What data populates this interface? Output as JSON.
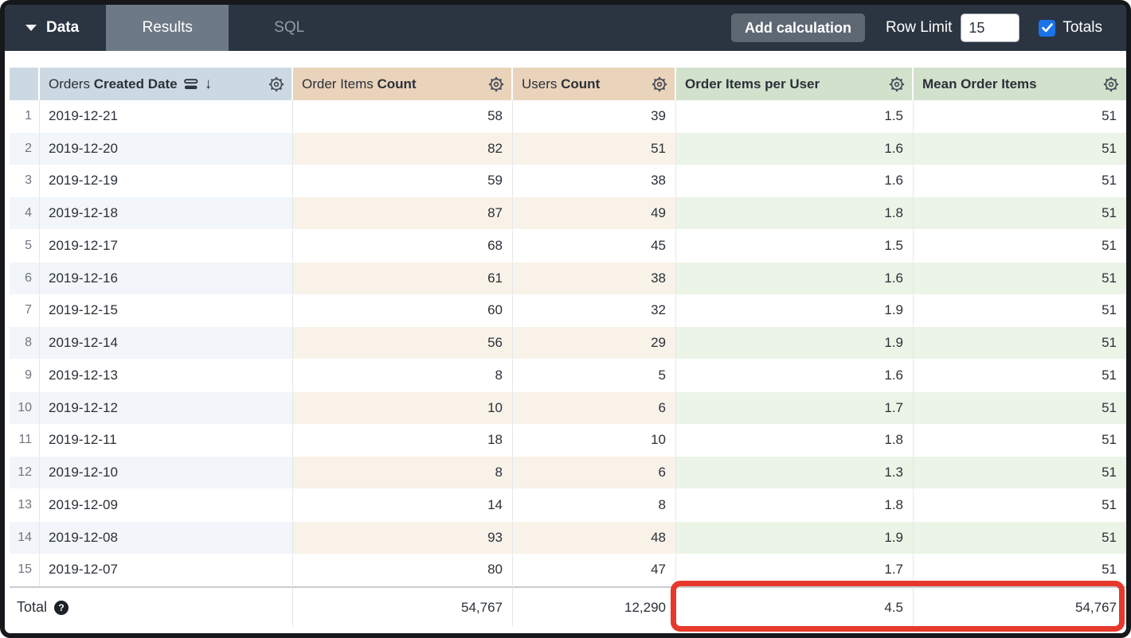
{
  "topbar": {
    "tabs": [
      {
        "label": "Data"
      },
      {
        "label": "Results"
      },
      {
        "label": "SQL"
      }
    ],
    "add_calculation_label": "Add calculation",
    "row_limit_label": "Row Limit",
    "row_limit_value": "15",
    "totals_label": "Totals",
    "totals_checked": true
  },
  "table": {
    "columns": [
      {
        "prefix": "Orders",
        "title": "Created Date",
        "type": "dimension",
        "sorted_desc": true
      },
      {
        "prefix": "Order Items",
        "title": "Count",
        "type": "measure"
      },
      {
        "prefix": "Users",
        "title": "Count",
        "type": "measure"
      },
      {
        "prefix": "",
        "title": "Order Items per User",
        "type": "table_calculation"
      },
      {
        "prefix": "",
        "title": "Mean Order Items",
        "type": "table_calculation"
      }
    ],
    "rows": [
      {
        "index": "1",
        "date": "2019-12-21",
        "order_items_count": "58",
        "users_count": "39",
        "order_items_per_user": "1.5",
        "mean_order_items": "51"
      },
      {
        "index": "2",
        "date": "2019-12-20",
        "order_items_count": "82",
        "users_count": "51",
        "order_items_per_user": "1.6",
        "mean_order_items": "51"
      },
      {
        "index": "3",
        "date": "2019-12-19",
        "order_items_count": "59",
        "users_count": "38",
        "order_items_per_user": "1.6",
        "mean_order_items": "51"
      },
      {
        "index": "4",
        "date": "2019-12-18",
        "order_items_count": "87",
        "users_count": "49",
        "order_items_per_user": "1.8",
        "mean_order_items": "51"
      },
      {
        "index": "5",
        "date": "2019-12-17",
        "order_items_count": "68",
        "users_count": "45",
        "order_items_per_user": "1.5",
        "mean_order_items": "51"
      },
      {
        "index": "6",
        "date": "2019-12-16",
        "order_items_count": "61",
        "users_count": "38",
        "order_items_per_user": "1.6",
        "mean_order_items": "51"
      },
      {
        "index": "7",
        "date": "2019-12-15",
        "order_items_count": "60",
        "users_count": "32",
        "order_items_per_user": "1.9",
        "mean_order_items": "51"
      },
      {
        "index": "8",
        "date": "2019-12-14",
        "order_items_count": "56",
        "users_count": "29",
        "order_items_per_user": "1.9",
        "mean_order_items": "51"
      },
      {
        "index": "9",
        "date": "2019-12-13",
        "order_items_count": "8",
        "users_count": "5",
        "order_items_per_user": "1.6",
        "mean_order_items": "51"
      },
      {
        "index": "10",
        "date": "2019-12-12",
        "order_items_count": "10",
        "users_count": "6",
        "order_items_per_user": "1.7",
        "mean_order_items": "51"
      },
      {
        "index": "11",
        "date": "2019-12-11",
        "order_items_count": "18",
        "users_count": "10",
        "order_items_per_user": "1.8",
        "mean_order_items": "51"
      },
      {
        "index": "12",
        "date": "2019-12-10",
        "order_items_count": "8",
        "users_count": "6",
        "order_items_per_user": "1.3",
        "mean_order_items": "51"
      },
      {
        "index": "13",
        "date": "2019-12-09",
        "order_items_count": "14",
        "users_count": "8",
        "order_items_per_user": "1.8",
        "mean_order_items": "51"
      },
      {
        "index": "14",
        "date": "2019-12-08",
        "order_items_count": "93",
        "users_count": "48",
        "order_items_per_user": "1.9",
        "mean_order_items": "51"
      },
      {
        "index": "15",
        "date": "2019-12-07",
        "order_items_count": "80",
        "users_count": "47",
        "order_items_per_user": "1.7",
        "mean_order_items": "51"
      }
    ],
    "total": {
      "label": "Total",
      "order_items_count": "54,767",
      "users_count": "12,290",
      "order_items_per_user": "4.5",
      "mean_order_items": "54,767"
    }
  },
  "colors": {
    "topbar_bg": "#2b3542",
    "active_tab_bg": "#6e7987",
    "dimension_header_bg": "#cdd9e2",
    "measure_header_bg": "#e9d3bb",
    "calc_header_bg": "#d2e1cc",
    "dimension_row_tint": "#f2f5f9",
    "measure_row_tint": "#f9f2e9",
    "calc_row_tint": "#ebf4e7",
    "totals_checkbox_blue": "#1a73e8",
    "highlight_red": "#e6392c"
  }
}
